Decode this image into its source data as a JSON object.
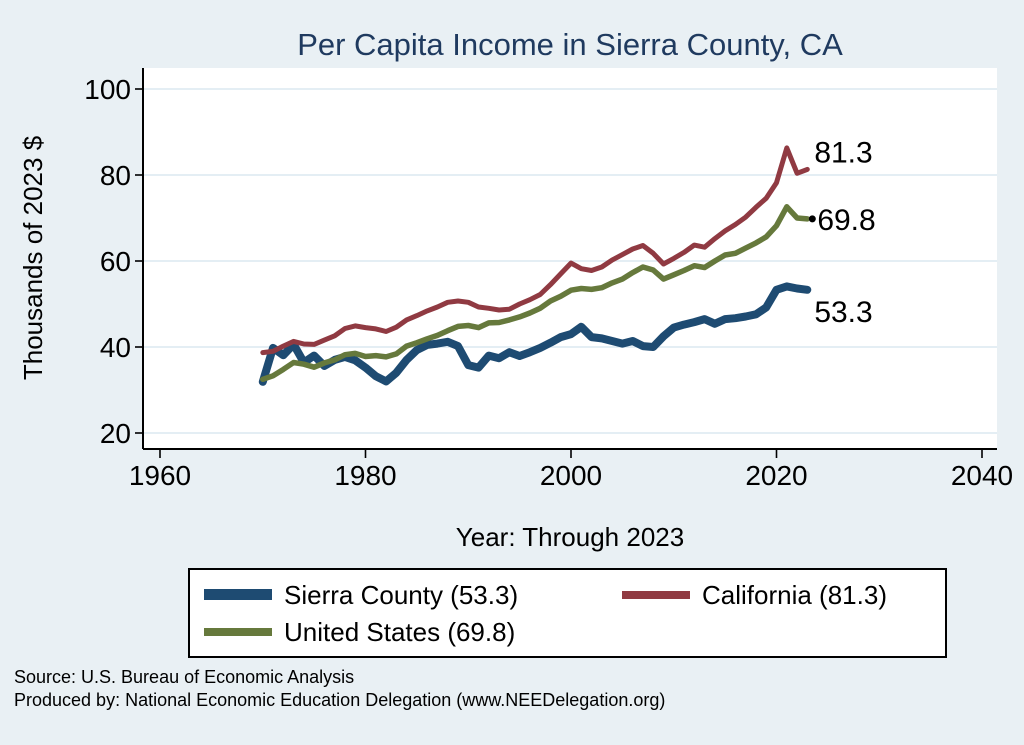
{
  "chart": {
    "title": "Per Capita Income in Sierra County, CA"
  },
  "legend": {
    "items": [
      {
        "label": "Sierra County (53.3)",
        "color": "#1e4b72"
      },
      {
        "label": "California (81.3)",
        "color": "#903a42"
      },
      {
        "label": "United States (69.8)",
        "color": "#66793c"
      }
    ]
  },
  "footer": {
    "line1": "Source: U.S. Bureau of Economic Analysis",
    "line2": "Produced by: National Economic Education Delegation (www.NEEDelegation.org)"
  },
  "colors": {
    "background": "#e9f0f4",
    "plot_background": "#ffffff",
    "grid": "#dce8f1",
    "axis": "#000000",
    "title": "#1f3a5f",
    "end_label": "#000000"
  },
  "chart_data": {
    "type": "line",
    "title": "Per Capita Income in Sierra County, CA",
    "xlabel": "Year: Through 2023",
    "ylabel": "Thousands of 2023 $",
    "xlim": [
      1958,
      2042
    ],
    "ylim": [
      16,
      105
    ],
    "xticks": [
      1960,
      1980,
      2000,
      2020,
      2040
    ],
    "yticks": [
      20,
      40,
      60,
      80,
      100
    ],
    "grid": "horizontal",
    "legend_position": "bottom",
    "start_year": 1970,
    "end_year": 2023,
    "draw_order": [
      0,
      2,
      1
    ],
    "series": [
      {
        "name": "Sierra County",
        "color": "#1e4b72",
        "width": 8,
        "end_label": "53.3",
        "end_label_dy": 22,
        "end_marker": false,
        "values": [
          31.9,
          39.8,
          38.1,
          40.6,
          36.4,
          38.0,
          35.6,
          37.0,
          37.7,
          36.9,
          35.2,
          33.2,
          32.0,
          34.0,
          37.0,
          39.3,
          40.5,
          40.8,
          41.2,
          40.2,
          35.8,
          35.2,
          38.0,
          37.4,
          38.8,
          37.9,
          38.8,
          39.8,
          41.0,
          42.3,
          43.0,
          44.7,
          42.3,
          42.0,
          41.4,
          40.8,
          41.4,
          40.2,
          40.0,
          42.5,
          44.5,
          45.2,
          45.8,
          46.5,
          45.4,
          46.5,
          46.7,
          47.1,
          47.6,
          49.2,
          53.3,
          54.1,
          53.6,
          53.3
        ]
      },
      {
        "name": "California",
        "color": "#903a42",
        "width": 5,
        "end_label": "81.3",
        "end_label_dy": -17,
        "end_marker": false,
        "values": [
          38.7,
          39.0,
          40.2,
          41.3,
          40.7,
          40.6,
          41.6,
          42.6,
          44.3,
          44.9,
          44.5,
          44.2,
          43.6,
          44.6,
          46.3,
          47.3,
          48.4,
          49.3,
          50.4,
          50.7,
          50.4,
          49.3,
          49.0,
          48.6,
          48.8,
          50.0,
          51.0,
          52.2,
          54.5,
          57.0,
          59.5,
          58.2,
          57.8,
          58.6,
          60.2,
          61.5,
          62.8,
          63.6,
          61.8,
          59.3,
          60.6,
          62.0,
          63.7,
          63.2,
          65.2,
          67.0,
          68.5,
          70.2,
          72.5,
          74.6,
          78.2,
          86.3,
          80.4,
          81.3
        ]
      },
      {
        "name": "United States",
        "color": "#66793c",
        "width": 5.5,
        "end_label": "69.8",
        "end_label_dy": 1,
        "end_marker": true,
        "values": [
          32.5,
          33.3,
          34.8,
          36.4,
          36.0,
          35.3,
          36.3,
          37.0,
          38.2,
          38.5,
          37.8,
          38.0,
          37.7,
          38.4,
          40.2,
          41.0,
          41.9,
          42.7,
          43.8,
          44.8,
          45.0,
          44.5,
          45.6,
          45.7,
          46.3,
          47.0,
          47.9,
          49.0,
          50.7,
          51.8,
          53.2,
          53.6,
          53.4,
          53.8,
          54.9,
          55.8,
          57.3,
          58.6,
          57.9,
          55.8,
          56.8,
          57.8,
          58.9,
          58.5,
          60.0,
          61.4,
          61.8,
          63.0,
          64.2,
          65.6,
          68.2,
          72.6,
          70.0,
          69.8
        ]
      }
    ]
  }
}
